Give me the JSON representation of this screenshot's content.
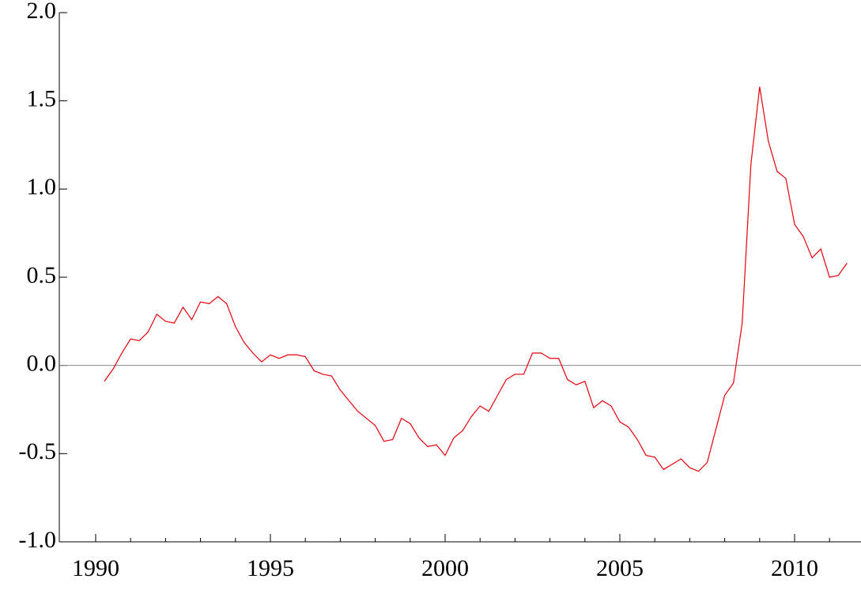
{
  "chart_data": {
    "type": "line",
    "x": [
      1990.25,
      1990.5,
      1990.75,
      1991,
      1991.25,
      1991.5,
      1991.75,
      1992,
      1992.25,
      1992.5,
      1992.75,
      1993,
      1993.25,
      1993.5,
      1993.75,
      1994,
      1994.25,
      1994.5,
      1994.75,
      1995,
      1995.25,
      1995.5,
      1995.75,
      1996,
      1996.25,
      1996.5,
      1996.75,
      1997,
      1997.25,
      1997.5,
      1997.75,
      1998,
      1998.25,
      1998.5,
      1998.75,
      1999,
      1999.25,
      1999.5,
      1999.75,
      2000,
      2000.25,
      2000.5,
      2000.75,
      2001,
      2001.25,
      2001.5,
      2001.75,
      2002,
      2002.25,
      2002.5,
      2002.75,
      2003,
      2003.25,
      2003.5,
      2003.75,
      2004,
      2004.25,
      2004.5,
      2004.75,
      2005,
      2005.25,
      2005.5,
      2005.75,
      2006,
      2006.25,
      2006.5,
      2006.75,
      2007,
      2007.25,
      2007.5,
      2007.75,
      2008,
      2008.25,
      2008.5,
      2008.75,
      2009,
      2009.25,
      2009.5,
      2009.75,
      2010,
      2010.25,
      2010.5,
      2010.75,
      2011,
      2011.25,
      2011.5
    ],
    "series": [
      {
        "color": "#e8000b",
        "values": [
          -0.09,
          -0.02,
          0.07,
          0.15,
          0.14,
          0.19,
          0.29,
          0.25,
          0.24,
          0.33,
          0.26,
          0.36,
          0.35,
          0.39,
          0.35,
          0.22,
          0.13,
          0.07,
          0.02,
          0.06,
          0.04,
          0.06,
          0.06,
          0.05,
          -0.03,
          -0.05,
          -0.06,
          -0.14,
          -0.2,
          -0.26,
          -0.3,
          -0.34,
          -0.43,
          -0.42,
          -0.3,
          -0.33,
          -0.41,
          -0.46,
          -0.45,
          -0.51,
          -0.41,
          -0.37,
          -0.29,
          -0.23,
          -0.26,
          -0.17,
          -0.08,
          -0.05,
          -0.05,
          0.07,
          0.07,
          0.04,
          0.04,
          -0.08,
          -0.11,
          -0.09,
          -0.24,
          -0.2,
          -0.23,
          -0.32,
          -0.35,
          -0.42,
          -0.51,
          -0.52,
          -0.59,
          -0.56,
          -0.53,
          -0.58,
          -0.6,
          -0.55,
          -0.36,
          -0.17,
          -0.1,
          0.24,
          1.14,
          1.58,
          1.27,
          1.1,
          1.06,
          0.8,
          0.73,
          0.61,
          0.66,
          0.5,
          0.51,
          0.58
        ]
      }
    ],
    "xlim": [
      1988.96,
      2011.9
    ],
    "ylim": [
      -1,
      2
    ],
    "xticks": [
      1990,
      1995,
      2000,
      2005,
      2010
    ],
    "xminor_ticks": [
      1991,
      1992,
      1993,
      1994,
      1996,
      1997,
      1998,
      1999,
      2001,
      2002,
      2003,
      2004,
      2006,
      2007,
      2008,
      2009,
      2011
    ],
    "yticks": [
      {
        "value": -1,
        "label": "-1.0"
      },
      -0.5,
      {
        "value": 0,
        "label": "0.0"
      },
      0.5,
      {
        "value": 1,
        "label": "1.0"
      },
      {
        "value": 1.5,
        "label": "1.5"
      },
      {
        "value": 2,
        "label": "2.0"
      }
    ],
    "reference_line": 0,
    "reference_color": "#888888"
  }
}
